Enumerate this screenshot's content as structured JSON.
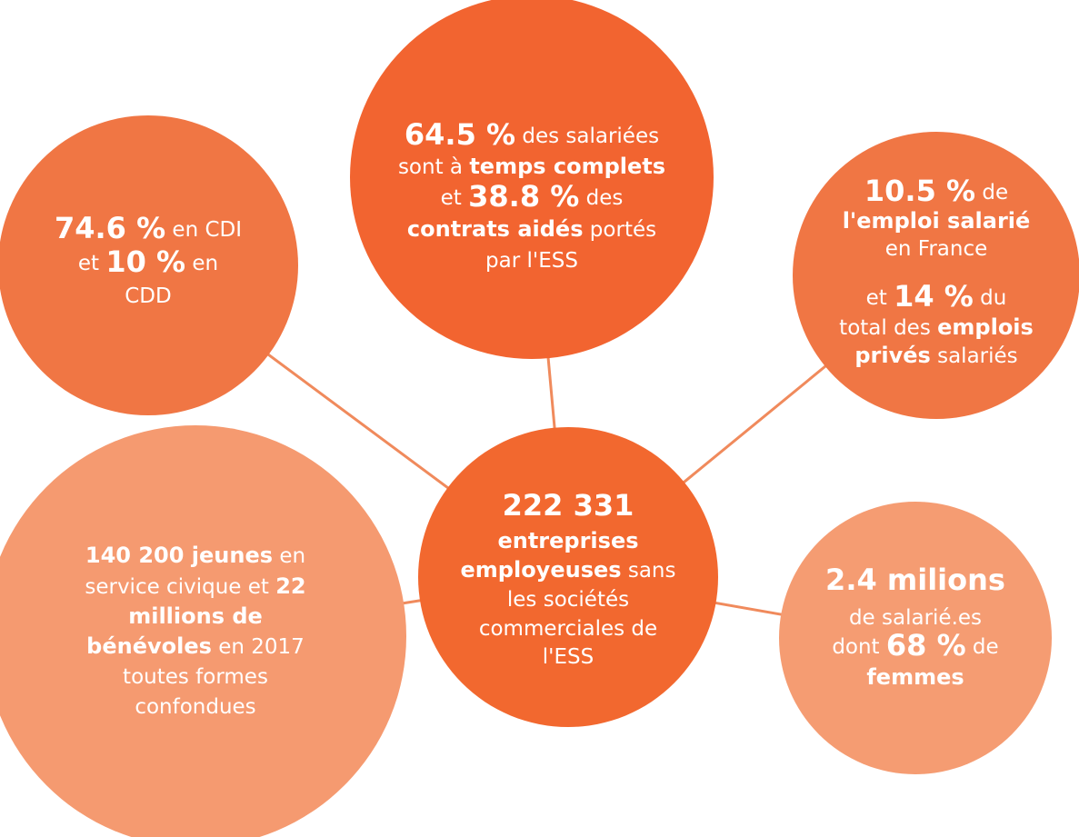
{
  "circles": [
    {
      "lines": [
        [
          {
            "text": "64.5 %",
            "emphasis": "large"
          },
          {
            "text": " des salariées"
          }
        ],
        [
          {
            "text": "sont à "
          },
          {
            "text": "temps complets",
            "emphasis": "bold"
          }
        ],
        [
          {
            "text": "et "
          },
          {
            "text": "38.8 %",
            "emphasis": "large"
          },
          {
            "text": " des"
          }
        ],
        [
          {
            "text": "contrats aidés",
            "emphasis": "bold"
          },
          {
            "text": " portés"
          }
        ],
        [
          {
            "text": "par l'ESS"
          }
        ]
      ]
    },
    {
      "lines": [
        [
          {
            "text": "74.6 %",
            "emphasis": "large"
          },
          {
            "text": " en CDI"
          }
        ],
        [
          {
            "text": "et "
          },
          {
            "text": "10 %",
            "emphasis": "large"
          },
          {
            "text": " en"
          }
        ],
        [
          {
            "text": "CDD"
          }
        ]
      ]
    },
    {
      "lines": [
        [
          {
            "text": "10.5 %",
            "emphasis": "large"
          },
          {
            "text": " de"
          }
        ],
        [
          {
            "text": "l'emploi salarié",
            "emphasis": "bold"
          }
        ],
        [
          {
            "text": "en France"
          }
        ],
        [
          {
            "text": "et "
          },
          {
            "text": "14 %",
            "emphasis": "large"
          },
          {
            "text": " du"
          }
        ],
        [
          {
            "text": "total des "
          },
          {
            "text": "emplois",
            "emphasis": "bold"
          }
        ],
        [
          {
            "text": "privés",
            "emphasis": "bold"
          },
          {
            "text": " salariés"
          }
        ]
      ]
    },
    {
      "lines": [
        [
          {
            "text": "222 331",
            "emphasis": "large"
          }
        ],
        [
          {
            "text": "entreprises",
            "emphasis": "bold"
          }
        ],
        [
          {
            "text": "employeuses",
            "emphasis": "bold"
          },
          {
            "text": " sans"
          }
        ],
        [
          {
            "text": "les sociétés"
          }
        ],
        [
          {
            "text": "commerciales de"
          }
        ],
        [
          {
            "text": "l'ESS"
          }
        ]
      ]
    },
    {
      "lines": [
        [
          {
            "text": "140 200 jeunes",
            "emphasis": "bold"
          },
          {
            "text": " en"
          }
        ],
        [
          {
            "text": "service civique et "
          },
          {
            "text": "22",
            "emphasis": "bold"
          }
        ],
        [
          {
            "text": "millions de",
            "emphasis": "bold"
          }
        ],
        [
          {
            "text": "bénévoles",
            "emphasis": "bold"
          },
          {
            "text": " en 2017"
          }
        ],
        [
          {
            "text": "toutes formes"
          }
        ],
        [
          {
            "text": "confondues"
          }
        ]
      ]
    },
    {
      "lines": [
        [
          {
            "text": "2.4 milions",
            "emphasis": "large"
          }
        ],
        [
          {
            "text": "de salarié.es"
          }
        ],
        [
          {
            "text": "dont "
          },
          {
            "text": "68 %",
            "emphasis": "large"
          },
          {
            "text": " de"
          }
        ],
        [
          {
            "text": "femmes",
            "emphasis": "bold"
          }
        ]
      ]
    }
  ]
}
